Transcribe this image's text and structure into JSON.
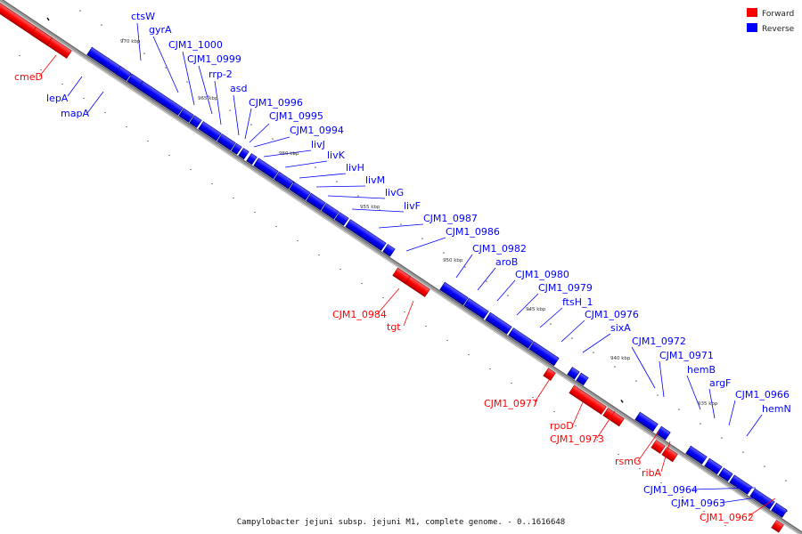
{
  "legend": {
    "items": [
      {
        "label": "Forward",
        "color": "#ff0000"
      },
      {
        "label": "Reverse",
        "color": "#0000ff"
      }
    ]
  },
  "footer": "Campylobacter jejuni subsp. jejuni M1, complete genome. - 0..1616648",
  "ticks": [
    "970 kbp",
    "965 kbp",
    "960 kbp",
    "955 kbp",
    "950 kbp",
    "945 kbp",
    "940 kbp",
    "935 kbp"
  ],
  "forward_genes": [
    "cmeD",
    "CJM1_0984",
    "tgt",
    "CJM1_0977",
    "rpoD",
    "CJM1_0973",
    "rsmG",
    "ribA",
    "CJM1_0962"
  ],
  "reverse_genes": [
    "lepA",
    "mapA",
    "ctsW",
    "gyrA",
    "CJM1_1000",
    "CJM1_0999",
    "rrp-2",
    "asd",
    "CJM1_0996",
    "CJM1_0995",
    "CJM1_0994",
    "livJ",
    "livK",
    "livH",
    "livM",
    "livG",
    "livF",
    "CJM1_0987",
    "CJM1_0986",
    "CJM1_0982",
    "aroB",
    "CJM1_0980",
    "CJM1_0979",
    "ftsH_1",
    "CJM1_0976",
    "sixA",
    "CJM1_0972",
    "CJM1_0971",
    "hemB",
    "argF",
    "CJM1_0966",
    "hemN",
    "CJM1_0964",
    "CJM1_0963"
  ],
  "colors": {
    "forward": "#ff0000",
    "reverse": "#0000ff",
    "backbone": "#888888"
  }
}
